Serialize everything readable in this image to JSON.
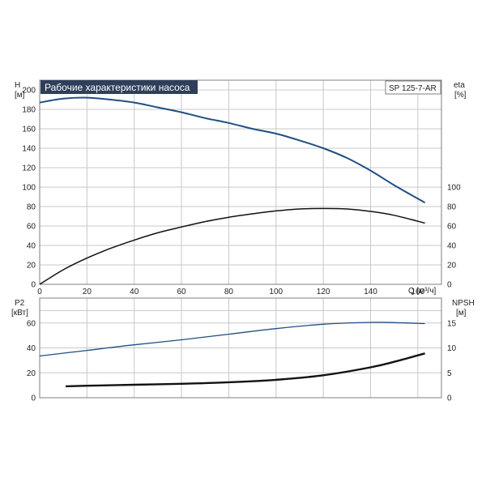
{
  "colors": {
    "head_curve": "#1f4f82",
    "efficiency_curve": "#111111",
    "power_curve": "#1f4f82",
    "npsh_curve": "#111111",
    "title_bg": "#2f3f5a",
    "grid": "#c8c8c8"
  },
  "chart_data": [
    {
      "type": "line",
      "title": "Рабочие характеристики насоса",
      "model": "SP 125-7-AR",
      "xlabel": "Q [м³/ч]",
      "xlim": [
        0,
        170
      ],
      "x_ticks": [
        0,
        20,
        40,
        60,
        80,
        100,
        120,
        140,
        160
      ],
      "y_left": {
        "label": "H",
        "unit": "[м]",
        "lim": [
          0,
          210
        ],
        "ticks": [
          0,
          20,
          40,
          60,
          80,
          100,
          120,
          140,
          160,
          180,
          200
        ]
      },
      "y_right": {
        "label": "eta",
        "unit": "[%]",
        "lim": [
          0,
          100
        ],
        "ticks": [
          0,
          20,
          40,
          60,
          80,
          100
        ]
      },
      "grid": true,
      "series": [
        {
          "key": "head",
          "axis": "left",
          "x": [
            0,
            10,
            20,
            30,
            40,
            50,
            60,
            70,
            80,
            90,
            100,
            110,
            120,
            130,
            140,
            150,
            163
          ],
          "y": [
            187,
            191,
            192,
            190,
            187,
            182,
            177,
            171,
            166,
            160,
            155,
            148,
            140,
            130,
            117,
            102,
            84
          ]
        },
        {
          "key": "efficiency",
          "axis": "left",
          "x": [
            0,
            10,
            20,
            30,
            40,
            50,
            60,
            70,
            80,
            90,
            100,
            110,
            120,
            130,
            140,
            150,
            163
          ],
          "y": [
            0,
            15,
            27,
            37,
            45.5,
            53,
            59,
            64.5,
            69,
            72.5,
            75.5,
            77.5,
            78,
            77.5,
            75,
            71,
            63
          ]
        }
      ]
    },
    {
      "type": "line",
      "xlim": [
        0,
        170
      ],
      "y_left": {
        "label": "P2",
        "unit": "[кВт]",
        "lim": [
          0,
          80
        ],
        "ticks": [
          0,
          20,
          40,
          60
        ]
      },
      "y_right": {
        "label": "NPSH",
        "unit": "[м]",
        "lim": [
          0,
          20
        ],
        "ticks": [
          0,
          5,
          10,
          15
        ]
      },
      "grid": true,
      "series": [
        {
          "key": "power",
          "axis": "left",
          "x": [
            0,
            20,
            40,
            60,
            80,
            100,
            120,
            140,
            150,
            163
          ],
          "y": [
            33.5,
            38,
            42.5,
            46.5,
            51,
            55.5,
            59,
            60.5,
            60.3,
            59.5
          ]
        },
        {
          "key": "npsh",
          "axis": "right",
          "x": [
            11,
            20,
            40,
            60,
            80,
            100,
            120,
            140,
            150,
            163
          ],
          "y": [
            2.3,
            2.4,
            2.6,
            2.8,
            3.1,
            3.6,
            4.5,
            6.1,
            7.2,
            8.9
          ]
        }
      ]
    }
  ]
}
